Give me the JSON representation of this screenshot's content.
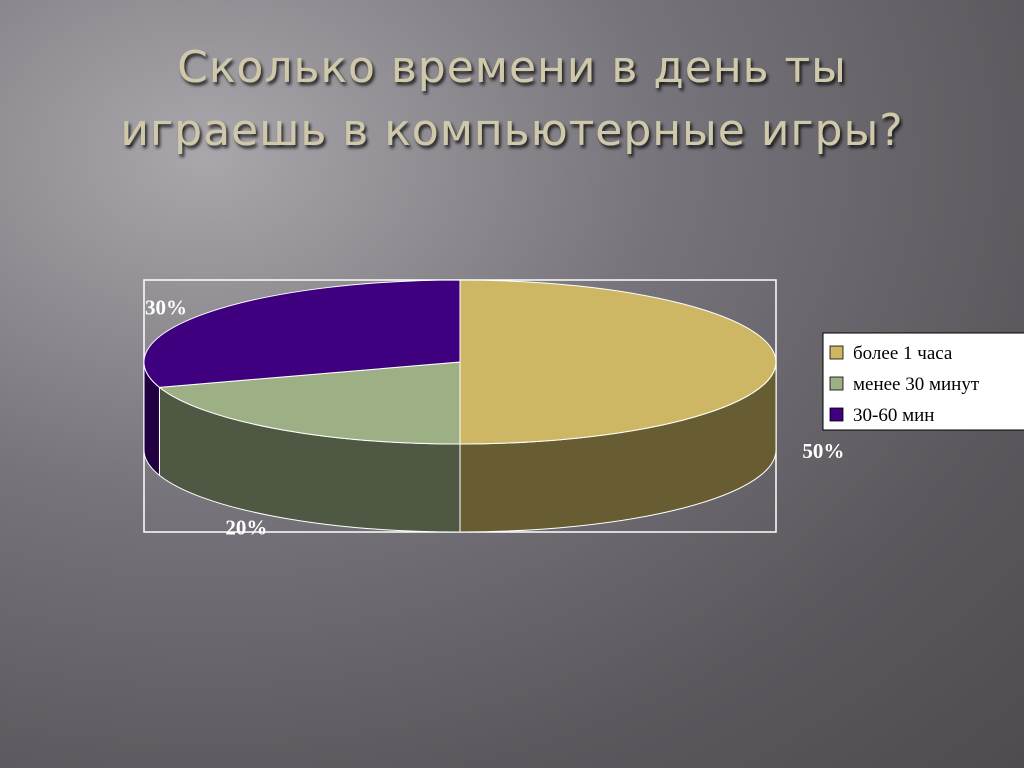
{
  "chart_data": {
    "type": "pie3d",
    "title": [
      "Сколько времени в день ты",
      "играешь в компьютерные игры?"
    ],
    "categories": [
      "более 1 часа",
      "менее 30 минут",
      "30-60 мин"
    ],
    "values": [
      50,
      20,
      30
    ],
    "value_labels": [
      "50%",
      "20%",
      "30%"
    ],
    "colors": [
      "#cdb764",
      "#9daf84",
      "#3f0080"
    ],
    "legend": "right"
  }
}
